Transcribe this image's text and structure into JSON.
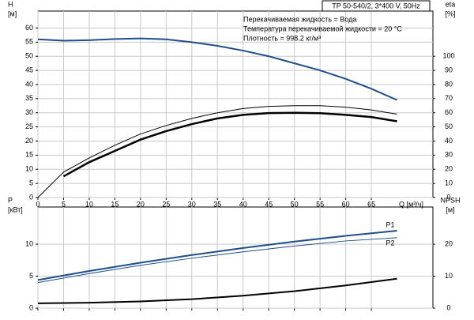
{
  "chart_data": [
    {
      "type": "line",
      "title": "TP 50-540/2, 3*400 V, 50Hz",
      "annotations": [
        "Перекачиваемая жидкость = Вода",
        "Температура перекачиваемой жидкости = 20 °C",
        "Плотность = 998.2 кг/м³"
      ],
      "xlabel": "Q [м³/ч]",
      "ylabel": [
        "H",
        "[м]"
      ],
      "y2label": [
        "eta",
        "[%]"
      ],
      "x": [
        0,
        5,
        10,
        15,
        20,
        25,
        30,
        35,
        40,
        45,
        50,
        55,
        60,
        65,
        70
      ],
      "series": [
        {
          "color": "#1f4e8c",
          "width": 2,
          "values": [
            56,
            55.5,
            55.7,
            56.1,
            56.3,
            56,
            55,
            53.7,
            52,
            50,
            47.5,
            45,
            42,
            38.5,
            34.5
          ]
        },
        {
          "color": "#000000",
          "width": 1,
          "axis": "y2",
          "values": [
            0,
            18,
            28,
            37,
            45,
            51,
            56,
            60,
            63,
            64.5,
            65,
            65,
            64,
            62,
            59
          ]
        },
        {
          "color": "#000000",
          "width": 2.5,
          "axis": "y2",
          "values": [
            null,
            15,
            25,
            33,
            41,
            47,
            52,
            56,
            58.5,
            59.8,
            60,
            59.7,
            58.5,
            57,
            54
          ]
        }
      ],
      "xlim": [
        0,
        77
      ],
      "xticks": [
        0,
        5,
        10,
        15,
        20,
        25,
        30,
        35,
        40,
        45,
        50,
        55,
        60,
        65
      ],
      "ylim": [
        0,
        66
      ],
      "yticks": [
        0,
        5,
        10,
        15,
        20,
        25,
        30,
        35,
        40,
        45,
        50,
        55,
        60
      ],
      "y2lim": [
        0,
        132
      ],
      "y2ticks": [
        0,
        10,
        20,
        30,
        40,
        50,
        60,
        70,
        80,
        90,
        100
      ],
      "grid": true,
      "xtick_labels": true
    },
    {
      "type": "line",
      "ylabel": [
        "P",
        "[кВт]"
      ],
      "y2label": [
        "NPSH",
        "[м]"
      ],
      "x": [
        0,
        10,
        20,
        30,
        40,
        50,
        60,
        70
      ],
      "series": [
        {
          "name": "P1",
          "color": "#1f4e8c",
          "width": 2,
          "values": [
            4.4,
            5.8,
            7.1,
            8.3,
            9.4,
            10.4,
            11.3,
            12.1
          ]
        },
        {
          "name": "P2",
          "color": "#1f4e8c",
          "width": 1,
          "values": [
            4.0,
            5.4,
            6.7,
            7.8,
            8.8,
            9.7,
            10.5,
            11.0
          ]
        },
        {
          "color": "#000000",
          "width": 2,
          "axis": "y2",
          "values": [
            1.5,
            1.7,
            2.1,
            2.8,
            3.9,
            5.3,
            7.1,
            9.2
          ]
        }
      ],
      "xlim": [
        0,
        77
      ],
      "xticks": [
        0,
        5,
        10,
        15,
        20,
        25,
        30,
        35,
        40,
        45,
        50,
        55,
        60,
        65
      ],
      "ylim": [
        0,
        15.8
      ],
      "yticks": [
        0,
        5,
        10
      ],
      "y2lim": [
        0,
        31.6
      ],
      "y2ticks": [
        0,
        10,
        20
      ],
      "grid": true,
      "xtick_labels": false
    }
  ]
}
